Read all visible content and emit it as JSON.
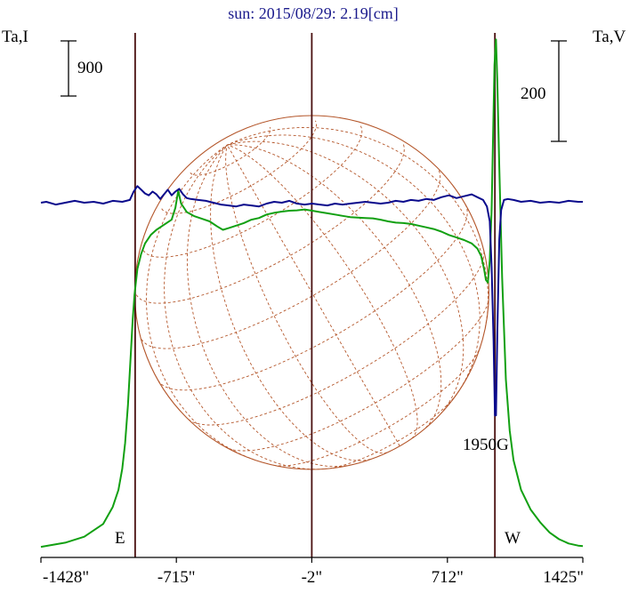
{
  "chart_data": {
    "type": "line",
    "title": "sun: 2015/08/29: 2.19[cm]",
    "ylabel_left": "Ta,I",
    "ylabel_right": "Ta,V",
    "x_ticks": [
      "-1428\"",
      "-715\"",
      "-2\"",
      "712\"",
      "1425\""
    ],
    "xlim": [
      -1428,
      1425
    ],
    "limb_labels": {
      "east": "E",
      "west": "W"
    },
    "scale_bars": [
      {
        "side": "left",
        "label": "900"
      },
      {
        "side": "right",
        "label": "200"
      }
    ],
    "annotations": [
      {
        "text": "1950G",
        "x": 1190
      }
    ],
    "vertical_lines": [
      -932,
      -2,
      962
    ],
    "disk_center": [
      -2,
      0
    ],
    "colors": {
      "intensity": "#12a012",
      "polarization": "#0a0a8c",
      "disk": "#b4562a",
      "vertical_line": "#4a1010",
      "title": "#1a1a8c",
      "axis": "#000000"
    },
    "series": [
      {
        "name": "I",
        "values": [
          [
            -1428,
            30
          ],
          [
            -1300,
            80
          ],
          [
            -1200,
            150
          ],
          [
            -1100,
            300
          ],
          [
            -1050,
            500
          ],
          [
            -1020,
            700
          ],
          [
            -1000,
            950
          ],
          [
            -985,
            1250
          ],
          [
            -970,
            1700
          ],
          [
            -955,
            2300
          ],
          [
            -945,
            2700
          ],
          [
            -935,
            3000
          ],
          [
            -920,
            3300
          ],
          [
            -900,
            3480
          ],
          [
            -880,
            3600
          ],
          [
            -850,
            3700
          ],
          [
            -820,
            3760
          ],
          [
            -780,
            3820
          ],
          [
            -740,
            3880
          ],
          [
            -720,
            4020
          ],
          [
            -705,
            4220
          ],
          [
            -690,
            4070
          ],
          [
            -660,
            3970
          ],
          [
            -620,
            3920
          ],
          [
            -580,
            3890
          ],
          [
            -540,
            3860
          ],
          [
            -500,
            3800
          ],
          [
            -470,
            3760
          ],
          [
            -440,
            3780
          ],
          [
            -400,
            3810
          ],
          [
            -360,
            3840
          ],
          [
            -320,
            3880
          ],
          [
            -280,
            3900
          ],
          [
            -240,
            3940
          ],
          [
            -200,
            3960
          ],
          [
            -160,
            3975
          ],
          [
            -120,
            3985
          ],
          [
            -80,
            3990
          ],
          [
            -40,
            4000
          ],
          [
            0,
            3985
          ],
          [
            40,
            3970
          ],
          [
            80,
            3955
          ],
          [
            120,
            3940
          ],
          [
            160,
            3925
          ],
          [
            200,
            3910
          ],
          [
            240,
            3905
          ],
          [
            280,
            3900
          ],
          [
            320,
            3895
          ],
          [
            360,
            3880
          ],
          [
            400,
            3860
          ],
          [
            440,
            3845
          ],
          [
            480,
            3840
          ],
          [
            520,
            3830
          ],
          [
            560,
            3810
          ],
          [
            600,
            3790
          ],
          [
            640,
            3770
          ],
          [
            680,
            3740
          ],
          [
            720,
            3700
          ],
          [
            760,
            3670
          ],
          [
            800,
            3640
          ],
          [
            840,
            3600
          ],
          [
            870,
            3540
          ],
          [
            890,
            3450
          ],
          [
            905,
            3300
          ],
          [
            915,
            3170
          ],
          [
            925,
            3140
          ],
          [
            935,
            3400
          ],
          [
            945,
            4000
          ],
          [
            952,
            4800
          ],
          [
            960,
            5700
          ],
          [
            968,
            6000
          ],
          [
            975,
            5500
          ],
          [
            985,
            4500
          ],
          [
            1000,
            3200
          ],
          [
            1020,
            2000
          ],
          [
            1040,
            1400
          ],
          [
            1060,
            1050
          ],
          [
            1100,
            700
          ],
          [
            1150,
            470
          ],
          [
            1200,
            320
          ],
          [
            1250,
            200
          ],
          [
            1300,
            120
          ],
          [
            1350,
            70
          ],
          [
            1400,
            45
          ],
          [
            1425,
            40
          ]
        ]
      },
      {
        "name": "V",
        "values": [
          [
            -1428,
            0
          ],
          [
            -1400,
            1
          ],
          [
            -1350,
            -2
          ],
          [
            -1300,
            0
          ],
          [
            -1250,
            2
          ],
          [
            -1200,
            0
          ],
          [
            -1150,
            1
          ],
          [
            -1100,
            -1
          ],
          [
            -1050,
            2
          ],
          [
            -1000,
            1
          ],
          [
            -960,
            3
          ],
          [
            -940,
            12
          ],
          [
            -920,
            18
          ],
          [
            -900,
            14
          ],
          [
            -880,
            10
          ],
          [
            -860,
            8
          ],
          [
            -840,
            12
          ],
          [
            -820,
            9
          ],
          [
            -800,
            4
          ],
          [
            -780,
            9
          ],
          [
            -760,
            14
          ],
          [
            -740,
            8
          ],
          [
            -720,
            12
          ],
          [
            -700,
            15
          ],
          [
            -680,
            9
          ],
          [
            -660,
            5
          ],
          [
            -640,
            4
          ],
          [
            -600,
            3
          ],
          [
            -560,
            2
          ],
          [
            -520,
            0
          ],
          [
            -480,
            -2
          ],
          [
            -440,
            -3
          ],
          [
            -400,
            -4
          ],
          [
            -360,
            -2
          ],
          [
            -320,
            -3
          ],
          [
            -280,
            -4
          ],
          [
            -240,
            -1
          ],
          [
            -200,
            1
          ],
          [
            -160,
            0
          ],
          [
            -120,
            2
          ],
          [
            -80,
            -1
          ],
          [
            -40,
            -2
          ],
          [
            0,
            -1
          ],
          [
            40,
            -2
          ],
          [
            80,
            -3
          ],
          [
            120,
            -1
          ],
          [
            160,
            -2
          ],
          [
            200,
            -1
          ],
          [
            240,
            0
          ],
          [
            280,
            1
          ],
          [
            320,
            0
          ],
          [
            360,
            -1
          ],
          [
            400,
            0
          ],
          [
            440,
            2
          ],
          [
            480,
            1
          ],
          [
            520,
            3
          ],
          [
            560,
            2
          ],
          [
            600,
            4
          ],
          [
            640,
            3
          ],
          [
            680,
            6
          ],
          [
            720,
            8
          ],
          [
            760,
            5
          ],
          [
            800,
            7
          ],
          [
            840,
            9
          ],
          [
            870,
            6
          ],
          [
            900,
            3
          ],
          [
            920,
            -4
          ],
          [
            935,
            -20
          ],
          [
            945,
            -70
          ],
          [
            955,
            -150
          ],
          [
            962,
            -230
          ],
          [
            968,
            -230
          ],
          [
            975,
            -140
          ],
          [
            985,
            -40
          ],
          [
            995,
            -8
          ],
          [
            1010,
            3
          ],
          [
            1030,
            4
          ],
          [
            1060,
            3
          ],
          [
            1100,
            1
          ],
          [
            1150,
            2
          ],
          [
            1200,
            0
          ],
          [
            1250,
            1
          ],
          [
            1300,
            0
          ],
          [
            1350,
            2
          ],
          [
            1400,
            1
          ],
          [
            1425,
            1
          ]
        ]
      }
    ]
  }
}
